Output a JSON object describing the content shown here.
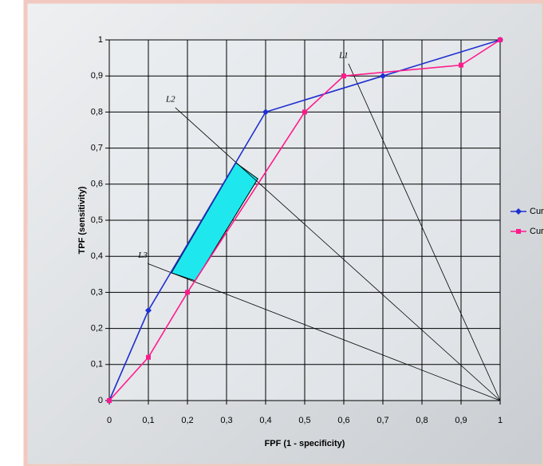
{
  "chart_data": {
    "type": "line",
    "xlabel": "FPF (1 - specificity)",
    "ylabel": "TPF (sensitivity)",
    "xlim": [
      0,
      1
    ],
    "ylim": [
      0,
      1
    ],
    "xticks": [
      0,
      {
        "value": 0.1,
        "label": "0,1"
      },
      {
        "value": 0.2,
        "label": "0,2"
      },
      {
        "value": 0.3,
        "label": "0,3"
      },
      {
        "value": 0.4,
        "label": "0,4"
      },
      {
        "value": 0.5,
        "label": "0,5"
      },
      {
        "value": 0.6,
        "label": "0,6"
      },
      {
        "value": 0.7,
        "label": "0,7"
      },
      {
        "value": 0.8,
        "label": "0,8"
      },
      {
        "value": 0.9,
        "label": "0,9"
      },
      1
    ],
    "yticks": [
      0,
      {
        "value": 0.1,
        "label": "0,1"
      },
      {
        "value": 0.2,
        "label": "0,2"
      },
      {
        "value": 0.3,
        "label": "0,3"
      },
      {
        "value": 0.4,
        "label": "0,4"
      },
      {
        "value": 0.5,
        "label": "0,5"
      },
      {
        "value": 0.6,
        "label": "0,6"
      },
      {
        "value": 0.7,
        "label": "0,7"
      },
      {
        "value": 0.8,
        "label": "0,8"
      },
      {
        "value": 0.9,
        "label": "0,9"
      },
      1
    ],
    "grid": true,
    "legend": "right",
    "series": [
      {
        "name": "Cur",
        "color": "#1f2fd0",
        "marker": "diamond",
        "x": [
          0,
          0.1,
          0.4,
          0.7,
          1
        ],
        "values": [
          0,
          0.25,
          0.8,
          0.9,
          1
        ]
      },
      {
        "name": "Cur",
        "color": "#ff1a8c",
        "marker": "square",
        "x": [
          0,
          0.1,
          0.2,
          0.5,
          0.6,
          0.9,
          1
        ],
        "values": [
          0,
          0.12,
          0.3,
          0.8,
          0.9,
          0.93,
          1
        ]
      }
    ],
    "annotations": [
      {
        "label": "L1",
        "x": [
          1,
          0.612
        ],
        "y": [
          0,
          0.934
        ]
      },
      {
        "label": "L2",
        "x": [
          1,
          0.169
        ],
        "y": [
          0,
          0.812
        ]
      },
      {
        "label": "L3",
        "x": [
          1,
          0.098
        ],
        "y": [
          0,
          0.38
        ]
      }
    ],
    "region": {
      "color": "#1ee8ee",
      "x": [
        0.159,
        0.324,
        0.38,
        0.22
      ],
      "y": [
        0.354,
        0.659,
        0.615,
        0.332
      ]
    }
  }
}
